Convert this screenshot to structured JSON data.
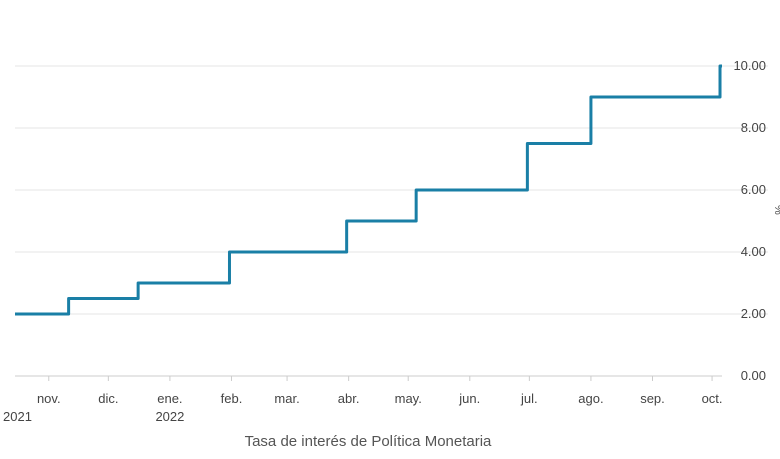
{
  "chart_data": {
    "type": "line",
    "step": true,
    "title": "",
    "xlabel": "",
    "ylabel": "%",
    "ylim": [
      0,
      10
    ],
    "yticks": [
      "0.00",
      "2.00",
      "4.00",
      "6.00",
      "8.00",
      "10.00"
    ],
    "y_axis_side": "right",
    "grid": true,
    "x_tick_labels": [
      "nov.",
      "dic.",
      "ene.",
      "feb.",
      "mar.",
      "abr.",
      "may.",
      "jun.",
      "jul.",
      "ago.",
      "sep.",
      "oct."
    ],
    "year_labels": [
      "2021",
      "2022"
    ],
    "legend_position": "bottom",
    "series": [
      {
        "name": "Tasa de interés de Política Monetaria",
        "color": "#1a7fa6",
        "x": [
          "2021-10-15",
          "2021-11-11",
          "2021-12-16",
          "2022-01-31",
          "2022-03-31",
          "2022-05-05",
          "2022-06-30",
          "2022-08-01",
          "2022-09-29",
          "2022-10-05"
        ],
        "values": [
          2.0,
          2.5,
          3.0,
          4.0,
          5.0,
          6.0,
          7.5,
          9.0,
          9.0,
          10.0
        ]
      }
    ]
  }
}
